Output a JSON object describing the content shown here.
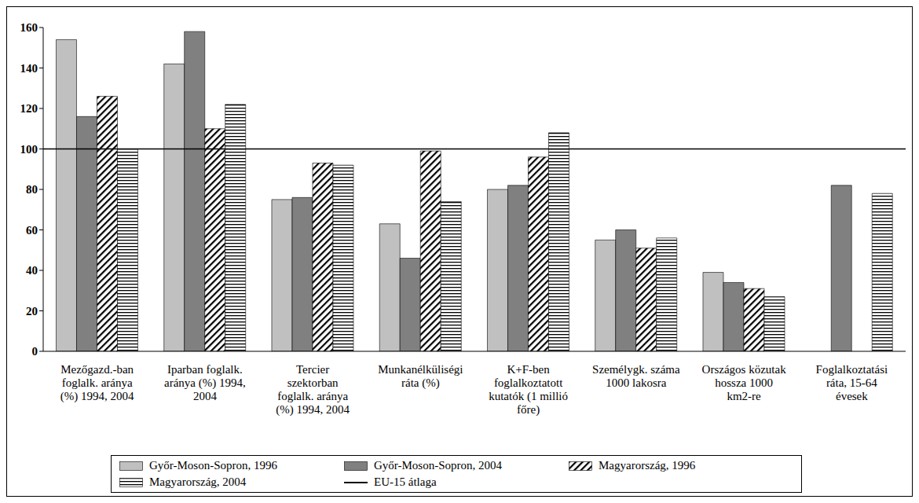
{
  "chart_data": {
    "type": "bar",
    "categories": [
      "Mezőgazd.-ban foglalk. aránya (%) 1994, 2004",
      "Iparban foglalk. aránya (%) 1994, 2004",
      "Tercier szektorban foglalk. aránya (%) 1994, 2004",
      "Munkanélküliségi ráta (%)",
      "K+F-ben foglalkoztatott kutatók (1 millió főre)",
      "Személygk. száma 1000 lakosra",
      "Országos közutak hossza 1000 km2-re",
      "Foglalkoztatási ráta, 15-64 évesek"
    ],
    "series": [
      {
        "name": "Győr-Moson-Sopron, 1996",
        "color": "#c0c0c0",
        "values": [
          154,
          142,
          75,
          63,
          80,
          55,
          39,
          null
        ]
      },
      {
        "name": "Győr-Moson-Sopron, 2004",
        "color": "#808080",
        "values": [
          116,
          158,
          76,
          46,
          82,
          60,
          34,
          82
        ]
      },
      {
        "name": "Magyarország, 1996",
        "color": "#000000",
        "values": [
          126,
          110,
          93,
          99,
          96,
          51,
          31,
          null
        ]
      },
      {
        "name": "Magyarország, 2004",
        "color": "#000000",
        "values": [
          100,
          122,
          92,
          74,
          108,
          56,
          27,
          78
        ]
      }
    ],
    "reference": {
      "name": "EU-15 átlaga",
      "value": 100,
      "color": "#000000"
    },
    "ylim": [
      0,
      160
    ],
    "yticks": [
      0,
      20,
      40,
      60,
      80,
      100,
      120,
      140,
      160
    ],
    "grid": false
  }
}
